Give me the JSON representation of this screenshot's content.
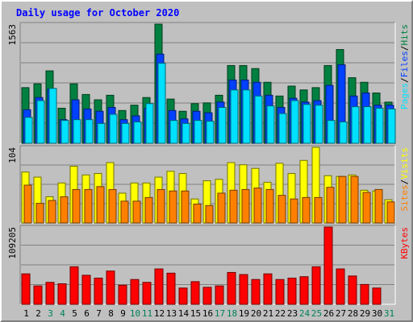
{
  "chart_data": {
    "type": "bar",
    "title": "Daily usage for October 2020",
    "categories": [
      "1",
      "2",
      "3",
      "4",
      "5",
      "6",
      "7",
      "8",
      "9",
      "10",
      "11",
      "12",
      "13",
      "14",
      "15",
      "16",
      "17",
      "18",
      "19",
      "20",
      "21",
      "22",
      "23",
      "24",
      "25",
      "26",
      "27",
      "28",
      "29",
      "30",
      "31"
    ],
    "weekend_days": [
      "3",
      "4",
      "10",
      "11",
      "17",
      "18",
      "24",
      "25",
      "31"
    ],
    "panels": [
      {
        "scale_label": "1563",
        "ylim": [
          0,
          1563
        ],
        "legend": [
          "Pages",
          "Files",
          "Hits"
        ],
        "series": [
          {
            "name": "Hits",
            "color": "#008040",
            "values": [
              730,
              780,
              950,
              460,
              780,
              640,
              570,
              630,
              430,
              500,
              600,
              1563,
              580,
              420,
              520,
              530,
              630,
              1020,
              1020,
              980,
              800,
              620,
              750,
              700,
              730,
              1020,
              1230,
              860,
              800,
              660,
              540
            ]
          },
          {
            "name": "Files",
            "color": "#0040ff",
            "values": [
              440,
              600,
              710,
              310,
              570,
              450,
              420,
              470,
              310,
              360,
              460,
              1170,
              430,
              320,
              420,
              400,
              540,
              830,
              830,
              800,
              630,
              470,
              590,
              540,
              560,
              760,
              1030,
              620,
              660,
              500,
              500
            ]
          },
          {
            "name": "Pages",
            "color": "#00e0ff",
            "values": [
              340,
              560,
              720,
              300,
              310,
              310,
              260,
              380,
              260,
              280,
              520,
              1050,
              300,
              260,
              300,
              290,
              470,
              700,
              700,
              620,
              490,
              390,
              560,
              510,
              500,
              300,
              280,
              480,
              480,
              460,
              450
            ]
          }
        ]
      },
      {
        "scale_label": "104",
        "ylim": [
          0,
          104
        ],
        "legend": [
          "Sites",
          "Visits"
        ],
        "series": [
          {
            "name": "Visits",
            "color": "#ffff00",
            "values": [
              70,
              63,
              36,
              55,
              78,
              66,
              68,
              83,
              41,
              55,
              55,
              63,
              71,
              68,
              33,
              58,
              60,
              83,
              80,
              75,
              56,
              82,
              68,
              86,
              104,
              65,
              64,
              66,
              45,
              44,
              32
            ]
          },
          {
            "name": "Sites",
            "color": "#ff8000",
            "values": [
              52,
              27,
              31,
              36,
              46,
              46,
              50,
              46,
              30,
              30,
              35,
              46,
              44,
              44,
              26,
              24,
              41,
              45,
              46,
              48,
              46,
              38,
              33,
              35,
              35,
              49,
              64,
              64,
              42,
              46,
              29
            ]
          }
        ]
      },
      {
        "scale_label": "109205",
        "ylim": [
          0,
          109205
        ],
        "legend": [
          "KBytes"
        ],
        "series": [
          {
            "name": "KBytes",
            "color": "#ff0000",
            "values": [
              43000,
              26000,
              31000,
              29000,
              53000,
              41000,
              37000,
              47000,
              27000,
              35000,
              31000,
              50000,
              44000,
              23000,
              32000,
              24000,
              26000,
              45000,
              42000,
              35000,
              43000,
              35000,
              37000,
              39000,
              53000,
              109205,
              50000,
              40000,
              28000,
              23000,
              0
            ]
          }
        ]
      }
    ]
  }
}
